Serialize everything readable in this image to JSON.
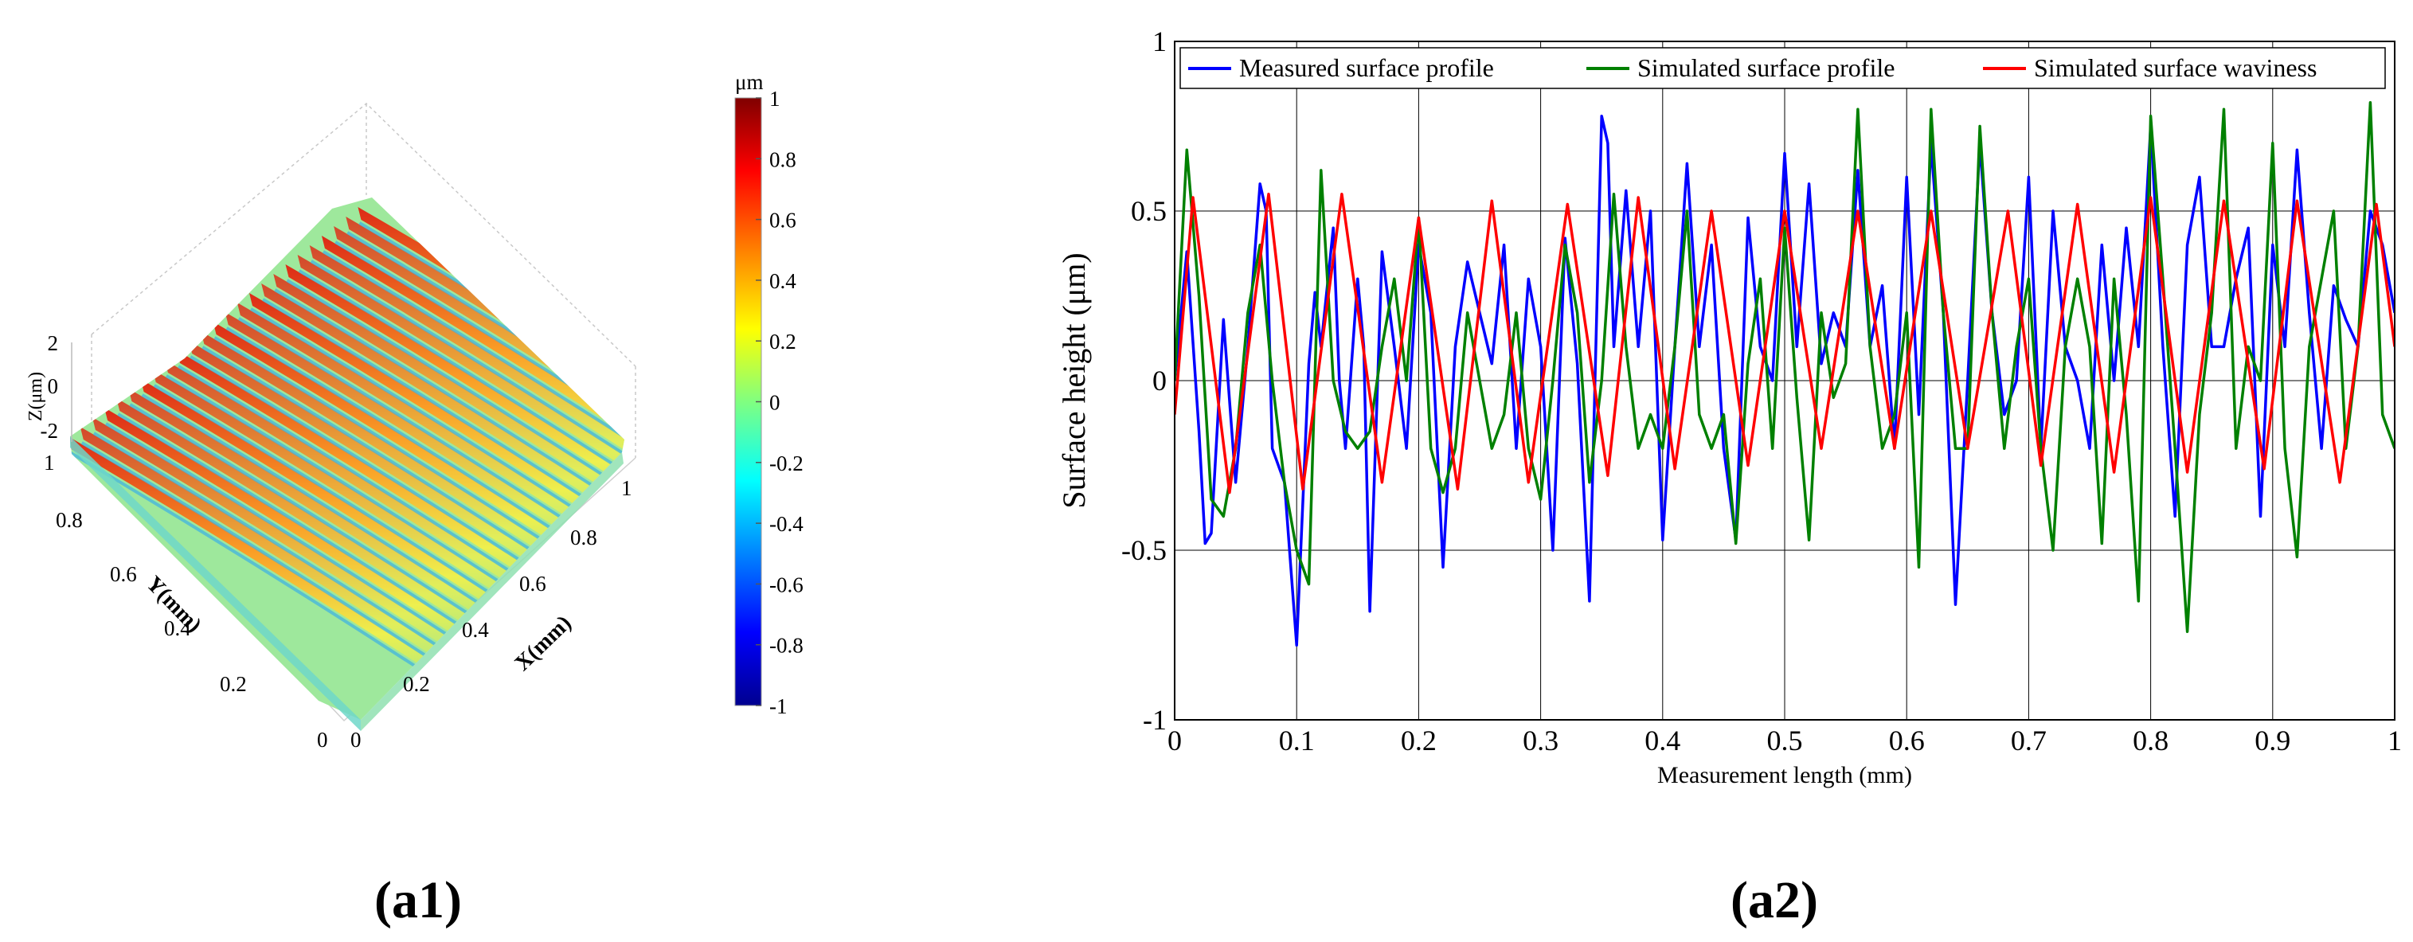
{
  "chart_data": [
    {
      "id": "a1",
      "type": "surface3d",
      "panel_label": "(a1)",
      "zlabel": "Z(μm)",
      "xlabel": "X(mm)",
      "ylabel": "Y(mm)",
      "x_ticks": [
        "0",
        "0.2",
        "0.4",
        "0.6",
        "0.8",
        "1"
      ],
      "y_ticks": [
        "0",
        "0.2",
        "0.4",
        "0.6",
        "0.8",
        "1"
      ],
      "z_ticks": [
        "2",
        "0",
        "-2"
      ],
      "xlim": [
        0,
        1
      ],
      "ylim": [
        0,
        1
      ],
      "zlim": [
        -2,
        2
      ],
      "colorbar": {
        "unit": "μm",
        "range": [
          -1,
          1
        ],
        "ticks": [
          "1",
          "0.8",
          "0.6",
          "0.4",
          "0.2",
          "0",
          "-0.2",
          "-0.4",
          "-0.6",
          "-0.8",
          "-1"
        ],
        "tick_values": [
          1,
          0.8,
          0.6,
          0.4,
          0.2,
          0,
          -0.2,
          -0.4,
          -0.6,
          -0.8,
          -1
        ],
        "colormap": [
          "#00008f",
          "#0000ff",
          "#00ffff",
          "#80ff80",
          "#ffff00",
          "#ff8000",
          "#ff0000",
          "#800000"
        ]
      },
      "ridge_count": 25
    },
    {
      "id": "a2",
      "type": "line",
      "panel_label": "(a2)",
      "xlabel": "Measurement length (mm)",
      "ylabel": "Surface height (μm)",
      "xlim": [
        0,
        1
      ],
      "ylim": [
        -1,
        1
      ],
      "x_ticks": [
        "0",
        "0.1",
        "0.2",
        "0.3",
        "0.4",
        "0.5",
        "0.6",
        "0.7",
        "0.8",
        "0.9",
        "1"
      ],
      "x_tick_values": [
        0,
        0.1,
        0.2,
        0.3,
        0.4,
        0.5,
        0.6,
        0.7,
        0.8,
        0.9,
        1
      ],
      "y_ticks": [
        "1",
        "0.5",
        "0",
        "-0.5",
        "-1"
      ],
      "y_tick_values": [
        1,
        0.5,
        0,
        -0.5,
        -1
      ],
      "grid": true,
      "legend_position": "top",
      "series": [
        {
          "name": "Measured surface profile",
          "color": "#0000ff",
          "x": [
            0,
            0.01,
            0.02,
            0.025,
            0.03,
            0.04,
            0.05,
            0.06,
            0.07,
            0.075,
            0.08,
            0.09,
            0.1,
            0.11,
            0.115,
            0.12,
            0.13,
            0.135,
            0.14,
            0.15,
            0.155,
            0.16,
            0.17,
            0.18,
            0.19,
            0.2,
            0.21,
            0.22,
            0.23,
            0.24,
            0.25,
            0.26,
            0.27,
            0.28,
            0.29,
            0.3,
            0.31,
            0.32,
            0.33,
            0.34,
            0.35,
            0.355,
            0.36,
            0.37,
            0.38,
            0.39,
            0.4,
            0.41,
            0.42,
            0.43,
            0.44,
            0.45,
            0.46,
            0.47,
            0.48,
            0.49,
            0.5,
            0.51,
            0.52,
            0.53,
            0.54,
            0.55,
            0.56,
            0.57,
            0.58,
            0.59,
            0.6,
            0.61,
            0.62,
            0.63,
            0.64,
            0.65,
            0.66,
            0.67,
            0.68,
            0.69,
            0.7,
            0.71,
            0.72,
            0.73,
            0.74,
            0.75,
            0.76,
            0.77,
            0.78,
            0.79,
            0.8,
            0.81,
            0.82,
            0.83,
            0.84,
            0.85,
            0.86,
            0.87,
            0.88,
            0.89,
            0.9,
            0.91,
            0.92,
            0.93,
            0.94,
            0.95,
            0.96,
            0.97,
            0.98,
            0.99,
            1.0
          ],
          "y": [
            0.0,
            0.38,
            -0.15,
            -0.48,
            -0.45,
            0.18,
            -0.3,
            0.1,
            0.58,
            0.5,
            -0.2,
            -0.3,
            -0.78,
            0.05,
            0.26,
            0.1,
            0.45,
            0.0,
            -0.2,
            0.3,
            0.1,
            -0.68,
            0.38,
            0.1,
            -0.2,
            0.4,
            0.2,
            -0.55,
            0.1,
            0.35,
            0.2,
            0.05,
            0.4,
            -0.2,
            0.3,
            0.1,
            -0.5,
            0.42,
            0.05,
            -0.65,
            0.78,
            0.7,
            0.1,
            0.56,
            0.1,
            0.5,
            -0.47,
            0.1,
            0.64,
            0.1,
            0.4,
            -0.2,
            -0.47,
            0.48,
            0.1,
            0.0,
            0.67,
            0.1,
            0.58,
            0.05,
            0.2,
            0.1,
            0.62,
            0.1,
            0.28,
            -0.2,
            0.6,
            -0.1,
            0.7,
            0.2,
            -0.66,
            0.0,
            0.7,
            0.2,
            -0.1,
            0.0,
            0.6,
            -0.2,
            0.5,
            0.1,
            0.0,
            -0.2,
            0.4,
            0.0,
            0.45,
            0.1,
            0.75,
            0.1,
            -0.4,
            0.4,
            0.6,
            0.1,
            0.1,
            0.3,
            0.45,
            -0.4,
            0.4,
            0.1,
            0.68,
            0.2,
            -0.2,
            0.28,
            0.18,
            0.1,
            0.5,
            0.4,
            0.2
          ]
        },
        {
          "name": "Simulated surface profile",
          "color": "#008000",
          "x": [
            0,
            0.01,
            0.02,
            0.03,
            0.04,
            0.05,
            0.06,
            0.07,
            0.08,
            0.09,
            0.1,
            0.11,
            0.12,
            0.13,
            0.14,
            0.15,
            0.16,
            0.17,
            0.18,
            0.19,
            0.2,
            0.21,
            0.22,
            0.23,
            0.24,
            0.25,
            0.26,
            0.27,
            0.28,
            0.29,
            0.3,
            0.31,
            0.32,
            0.33,
            0.34,
            0.35,
            0.36,
            0.37,
            0.38,
            0.39,
            0.4,
            0.41,
            0.42,
            0.43,
            0.44,
            0.45,
            0.46,
            0.47,
            0.48,
            0.49,
            0.5,
            0.51,
            0.52,
            0.53,
            0.54,
            0.55,
            0.56,
            0.57,
            0.58,
            0.59,
            0.6,
            0.61,
            0.62,
            0.63,
            0.64,
            0.65,
            0.66,
            0.67,
            0.68,
            0.69,
            0.7,
            0.71,
            0.72,
            0.73,
            0.74,
            0.75,
            0.76,
            0.77,
            0.78,
            0.79,
            0.8,
            0.81,
            0.82,
            0.83,
            0.84,
            0.85,
            0.86,
            0.87,
            0.88,
            0.89,
            0.9,
            0.91,
            0.92,
            0.93,
            0.94,
            0.95,
            0.96,
            0.97,
            0.98,
            0.99,
            1.0
          ],
          "y": [
            0.0,
            0.68,
            0.25,
            -0.35,
            -0.4,
            -0.2,
            0.2,
            0.4,
            0.0,
            -0.3,
            -0.5,
            -0.6,
            0.62,
            0.0,
            -0.15,
            -0.2,
            -0.15,
            0.1,
            0.3,
            0.0,
            0.48,
            -0.2,
            -0.33,
            -0.2,
            0.2,
            0.0,
            -0.2,
            -0.1,
            0.2,
            -0.2,
            -0.35,
            0.0,
            0.4,
            0.2,
            -0.3,
            0.0,
            0.55,
            0.1,
            -0.2,
            -0.1,
            -0.2,
            0.1,
            0.5,
            -0.1,
            -0.2,
            -0.1,
            -0.48,
            0.05,
            0.3,
            -0.2,
            0.45,
            -0.05,
            -0.47,
            0.2,
            -0.05,
            0.05,
            0.8,
            0.1,
            -0.2,
            -0.1,
            0.2,
            -0.55,
            0.8,
            0.2,
            -0.2,
            -0.2,
            0.75,
            0.2,
            -0.2,
            0.1,
            0.3,
            -0.2,
            -0.5,
            0.1,
            0.3,
            0.1,
            -0.48,
            0.3,
            -0.1,
            -0.65,
            0.78,
            0.3,
            -0.2,
            -0.74,
            -0.1,
            0.2,
            0.8,
            -0.2,
            0.1,
            0.0,
            0.7,
            -0.2,
            -0.52,
            0.1,
            0.3,
            0.5,
            -0.2,
            0.1,
            0.82,
            -0.1,
            -0.2
          ]
        },
        {
          "name": "Simulated surface waviness",
          "color": "#ff0000",
          "x": [
            0,
            0.015,
            0.045,
            0.077,
            0.105,
            0.137,
            0.17,
            0.2,
            0.232,
            0.26,
            0.29,
            0.322,
            0.355,
            0.38,
            0.41,
            0.44,
            0.47,
            0.5,
            0.53,
            0.56,
            0.59,
            0.62,
            0.65,
            0.683,
            0.71,
            0.74,
            0.77,
            0.8,
            0.83,
            0.86,
            0.893,
            0.92,
            0.955,
            0.985,
            1.0
          ],
          "y": [
            -0.1,
            0.54,
            -0.33,
            0.55,
            -0.32,
            0.55,
            -0.3,
            0.48,
            -0.32,
            0.53,
            -0.3,
            0.52,
            -0.28,
            0.54,
            -0.26,
            0.5,
            -0.25,
            0.5,
            -0.2,
            0.5,
            -0.2,
            0.5,
            -0.2,
            0.5,
            -0.25,
            0.52,
            -0.27,
            0.54,
            -0.27,
            0.53,
            -0.26,
            0.53,
            -0.3,
            0.52,
            0.1
          ]
        }
      ]
    }
  ]
}
